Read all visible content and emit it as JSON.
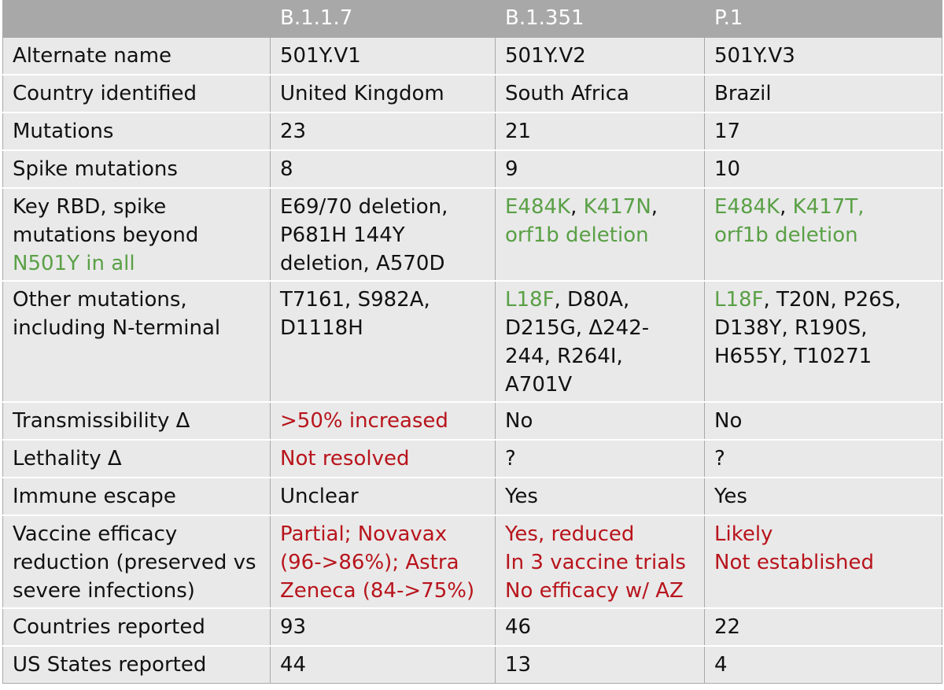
{
  "colors": {
    "header_bg": "#a8a8a8",
    "row_bg": "#e9e9e9",
    "green": "#5aa046",
    "red": "#b8141c"
  },
  "header": [
    "",
    "B.1.1.7",
    "B.1.351",
    "P.1"
  ],
  "rows": [
    {
      "label": [
        "Alternate name"
      ],
      "cells": [
        [
          [
            {
              "t": "501Y.V1"
            }
          ]
        ],
        [
          [
            {
              "t": "501Y.V2"
            }
          ]
        ],
        [
          [
            {
              "t": "501Y.V3"
            }
          ]
        ]
      ]
    },
    {
      "label": [
        "Country identified"
      ],
      "cells": [
        [
          [
            {
              "t": "United Kingdom"
            }
          ]
        ],
        [
          [
            {
              "t": "South Africa"
            }
          ]
        ],
        [
          [
            {
              "t": "Brazil"
            }
          ]
        ]
      ]
    },
    {
      "label": [
        "Mutations"
      ],
      "cells": [
        [
          [
            {
              "t": "23"
            }
          ]
        ],
        [
          [
            {
              "t": "21"
            }
          ]
        ],
        [
          [
            {
              "t": "17"
            }
          ]
        ]
      ]
    },
    {
      "label": [
        "Spike mutations"
      ],
      "cells": [
        [
          [
            {
              "t": "8"
            }
          ]
        ],
        [
          [
            {
              "t": "9"
            }
          ]
        ],
        [
          [
            {
              "t": "10"
            }
          ]
        ]
      ]
    },
    {
      "label": [
        [
          {
            "t": "Key RBD, spike"
          }
        ],
        [
          {
            "t": "mutations beyond"
          }
        ],
        [
          {
            "t": "N501Y in all",
            "c": "green"
          }
        ]
      ],
      "cells": [
        [
          [
            {
              "t": "E69/70 deletion,"
            }
          ],
          [
            {
              "t": "P681H 144Y"
            }
          ],
          [
            {
              "t": "deletion, A570D"
            }
          ]
        ],
        [
          [
            {
              "t": "E484K",
              "c": "green"
            },
            {
              "t": ", "
            },
            {
              "t": "K417N",
              "c": "green"
            },
            {
              "t": ","
            }
          ],
          [
            {
              "t": "orf1b deletion",
              "c": "green"
            }
          ]
        ],
        [
          [
            {
              "t": "E484K",
              "c": "green"
            },
            {
              "t": ", "
            },
            {
              "t": "K417T,",
              "c": "green"
            }
          ],
          [
            {
              "t": "orf1b deletion",
              "c": "green"
            }
          ]
        ]
      ]
    },
    {
      "label": [
        [
          {
            "t": "Other mutations,"
          }
        ],
        [
          {
            "t": "including N-terminal"
          }
        ]
      ],
      "cells": [
        [
          [
            {
              "t": "T7161, S982A,"
            }
          ],
          [
            {
              "t": "D1118H"
            }
          ]
        ],
        [
          [
            {
              "t": "L18F",
              "c": "green"
            },
            {
              "t": ", D80A,"
            }
          ],
          [
            {
              "t": "D215G, Δ242-"
            }
          ],
          [
            {
              "t": "244, R264I,"
            }
          ],
          [
            {
              "t": "A701V"
            }
          ]
        ],
        [
          [
            {
              "t": "L18F",
              "c": "green"
            },
            {
              "t": ", T20N, P26S,"
            }
          ],
          [
            {
              "t": "D138Y, R190S,"
            }
          ],
          [
            {
              "t": "H655Y, T10271"
            }
          ]
        ]
      ]
    },
    {
      "label": [
        "Transmissibility Δ"
      ],
      "cells": [
        [
          [
            {
              "t": ">50% increased",
              "c": "red"
            }
          ]
        ],
        [
          [
            {
              "t": "No"
            }
          ]
        ],
        [
          [
            {
              "t": "No"
            }
          ]
        ]
      ]
    },
    {
      "label": [
        "Lethality Δ"
      ],
      "cells": [
        [
          [
            {
              "t": "Not resolved",
              "c": "red"
            }
          ]
        ],
        [
          [
            {
              "t": "?"
            }
          ]
        ],
        [
          [
            {
              "t": "?"
            }
          ]
        ]
      ]
    },
    {
      "label": [
        "Immune escape"
      ],
      "cells": [
        [
          [
            {
              "t": "Unclear"
            }
          ]
        ],
        [
          [
            {
              "t": "Yes"
            }
          ]
        ],
        [
          [
            {
              "t": "Yes"
            }
          ]
        ]
      ]
    },
    {
      "label": [
        [
          {
            "t": "Vaccine efficacy"
          }
        ],
        [
          {
            "t": "reduction (preserved vs"
          }
        ],
        [
          {
            "t": "severe infections)"
          }
        ]
      ],
      "cells": [
        [
          [
            {
              "t": "Partial; Novavax",
              "c": "red"
            }
          ],
          [
            {
              "t": "(96->86%); Astra",
              "c": "red"
            }
          ],
          [
            {
              "t": "Zeneca (84->75%)",
              "c": "red"
            }
          ]
        ],
        [
          [
            {
              "t": "Yes, reduced",
              "c": "red"
            }
          ],
          [
            {
              "t": "In 3 vaccine trials",
              "c": "red"
            }
          ],
          [
            {
              "t": "No efficacy w/ AZ",
              "c": "red"
            }
          ]
        ],
        [
          [
            {
              "t": "Likely",
              "c": "red"
            }
          ],
          [
            {
              "t": "Not established",
              "c": "red"
            }
          ]
        ]
      ]
    },
    {
      "label": [
        "Countries reported"
      ],
      "cells": [
        [
          [
            {
              "t": "93"
            }
          ]
        ],
        [
          [
            {
              "t": "46"
            }
          ]
        ],
        [
          [
            {
              "t": "22"
            }
          ]
        ]
      ]
    },
    {
      "label": [
        "US States reported"
      ],
      "cells": [
        [
          [
            {
              "t": "44"
            }
          ]
        ],
        [
          [
            {
              "t": "13"
            }
          ]
        ],
        [
          [
            {
              "t": "4"
            }
          ]
        ]
      ]
    }
  ]
}
